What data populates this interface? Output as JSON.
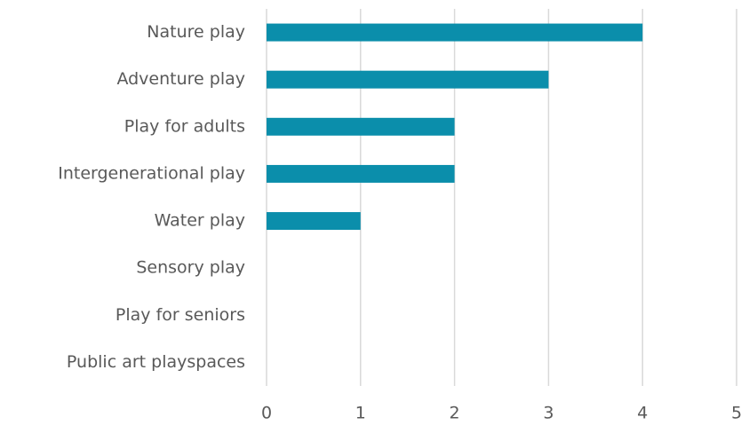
{
  "chart_data": {
    "type": "bar",
    "orientation": "horizontal",
    "categories": [
      "Nature play",
      "Adventure play",
      "Play for adults",
      "Intergenerational play",
      "Water play",
      "Sensory play",
      "Play for seniors",
      "Public art playspaces"
    ],
    "values": [
      4,
      3,
      2,
      2,
      1,
      0,
      0,
      0
    ],
    "color": "#0b8eab",
    "xlim": [
      0,
      5
    ],
    "xticks": [
      0,
      1,
      2,
      3,
      4,
      5
    ],
    "grid": true
  }
}
